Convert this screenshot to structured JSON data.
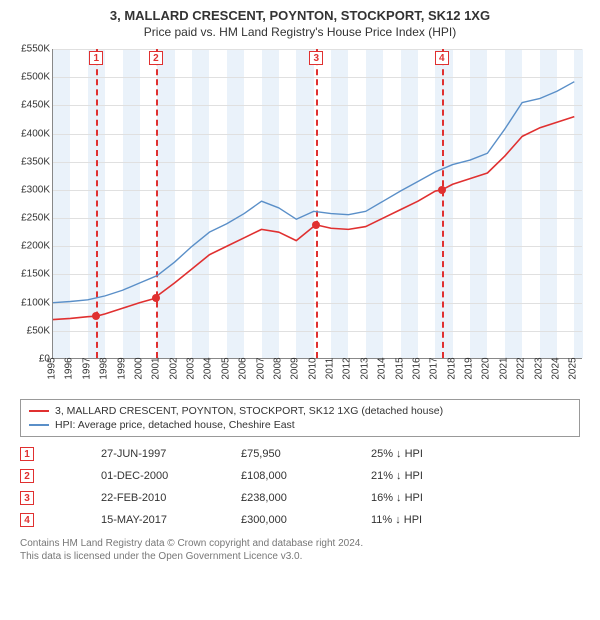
{
  "header": {
    "title": "3, MALLARD CRESCENT, POYNTON, STOCKPORT, SK12 1XG",
    "subtitle": "Price paid vs. HM Land Registry's House Price Index (HPI)"
  },
  "chart": {
    "type": "line",
    "background_color": "#ffffff",
    "grid_color": "#e0e0e0",
    "band_color": "#eaf2fa",
    "x_range": [
      1995,
      2025.5
    ],
    "y_range": [
      0,
      550000
    ],
    "ytick_step": 50000,
    "yticks": [
      "£0",
      "£50K",
      "£100K",
      "£150K",
      "£200K",
      "£250K",
      "£300K",
      "£350K",
      "£400K",
      "£450K",
      "£500K",
      "£550K"
    ],
    "xticks": [
      1995,
      1996,
      1997,
      1998,
      1999,
      2000,
      2001,
      2002,
      2003,
      2004,
      2005,
      2006,
      2007,
      2008,
      2009,
      2010,
      2011,
      2012,
      2013,
      2014,
      2015,
      2016,
      2017,
      2018,
      2019,
      2020,
      2021,
      2022,
      2023,
      2024,
      2025
    ],
    "banded_years": [
      1995,
      1997,
      1999,
      2001,
      2003,
      2005,
      2007,
      2009,
      2011,
      2013,
      2015,
      2017,
      2019,
      2021,
      2023,
      2025
    ],
    "series": [
      {
        "name": "property",
        "label": "3, MALLARD CRESCENT, POYNTON, STOCKPORT, SK12 1XG (detached house)",
        "color": "#e03030",
        "line_width": 1.6,
        "data": [
          [
            1995,
            70000
          ],
          [
            1996,
            72000
          ],
          [
            1997,
            75000
          ],
          [
            1997.5,
            75950
          ],
          [
            1998,
            80000
          ],
          [
            1999,
            90000
          ],
          [
            2000,
            100000
          ],
          [
            2000.92,
            108000
          ],
          [
            2001,
            112000
          ],
          [
            2002,
            135000
          ],
          [
            2003,
            160000
          ],
          [
            2004,
            185000
          ],
          [
            2005,
            200000
          ],
          [
            2006,
            215000
          ],
          [
            2007,
            230000
          ],
          [
            2008,
            225000
          ],
          [
            2009,
            210000
          ],
          [
            2010,
            235000
          ],
          [
            2010.15,
            238000
          ],
          [
            2011,
            232000
          ],
          [
            2012,
            230000
          ],
          [
            2013,
            235000
          ],
          [
            2014,
            250000
          ],
          [
            2015,
            265000
          ],
          [
            2016,
            280000
          ],
          [
            2017,
            298000
          ],
          [
            2017.37,
            300000
          ],
          [
            2018,
            310000
          ],
          [
            2019,
            320000
          ],
          [
            2020,
            330000
          ],
          [
            2021,
            360000
          ],
          [
            2022,
            395000
          ],
          [
            2023,
            410000
          ],
          [
            2024,
            420000
          ],
          [
            2025,
            430000
          ]
        ]
      },
      {
        "name": "hpi",
        "label": "HPI: Average price, detached house, Cheshire East",
        "color": "#5a8fc8",
        "line_width": 1.4,
        "data": [
          [
            1995,
            100000
          ],
          [
            1996,
            102000
          ],
          [
            1997,
            105000
          ],
          [
            1998,
            112000
          ],
          [
            1999,
            122000
          ],
          [
            2000,
            135000
          ],
          [
            2001,
            148000
          ],
          [
            2002,
            172000
          ],
          [
            2003,
            200000
          ],
          [
            2004,
            225000
          ],
          [
            2005,
            240000
          ],
          [
            2006,
            258000
          ],
          [
            2007,
            280000
          ],
          [
            2008,
            268000
          ],
          [
            2009,
            248000
          ],
          [
            2010,
            262000
          ],
          [
            2011,
            258000
          ],
          [
            2012,
            256000
          ],
          [
            2013,
            262000
          ],
          [
            2014,
            280000
          ],
          [
            2015,
            298000
          ],
          [
            2016,
            315000
          ],
          [
            2017,
            332000
          ],
          [
            2018,
            345000
          ],
          [
            2019,
            353000
          ],
          [
            2020,
            365000
          ],
          [
            2021,
            408000
          ],
          [
            2022,
            455000
          ],
          [
            2023,
            462000
          ],
          [
            2024,
            475000
          ],
          [
            2025,
            492000
          ]
        ]
      }
    ],
    "markers": [
      {
        "n": "1",
        "x": 1997.49
      },
      {
        "n": "2",
        "x": 2000.92
      },
      {
        "n": "3",
        "x": 2010.15
      },
      {
        "n": "4",
        "x": 2017.37
      }
    ],
    "points": [
      {
        "x": 1997.49,
        "y": 75950
      },
      {
        "x": 2000.92,
        "y": 108000
      },
      {
        "x": 2010.15,
        "y": 238000
      },
      {
        "x": 2017.37,
        "y": 300000
      }
    ]
  },
  "legend": {
    "items": [
      {
        "color": "#e03030",
        "text": "3, MALLARD CRESCENT, POYNTON, STOCKPORT, SK12 1XG (detached house)"
      },
      {
        "color": "#5a8fc8",
        "text": "HPI: Average price, detached house, Cheshire East"
      }
    ]
  },
  "transactions": {
    "rows": [
      {
        "n": "1",
        "date": "27-JUN-1997",
        "price": "£75,950",
        "diff": "25% ↓ HPI"
      },
      {
        "n": "2",
        "date": "01-DEC-2000",
        "price": "£108,000",
        "diff": "21% ↓ HPI"
      },
      {
        "n": "3",
        "date": "22-FEB-2010",
        "price": "£238,000",
        "diff": "16% ↓ HPI"
      },
      {
        "n": "4",
        "date": "15-MAY-2017",
        "price": "£300,000",
        "diff": "11% ↓ HPI"
      }
    ]
  },
  "footer": {
    "line1": "Contains HM Land Registry data © Crown copyright and database right 2024.",
    "line2": "This data is licensed under the Open Government Licence v3.0."
  }
}
